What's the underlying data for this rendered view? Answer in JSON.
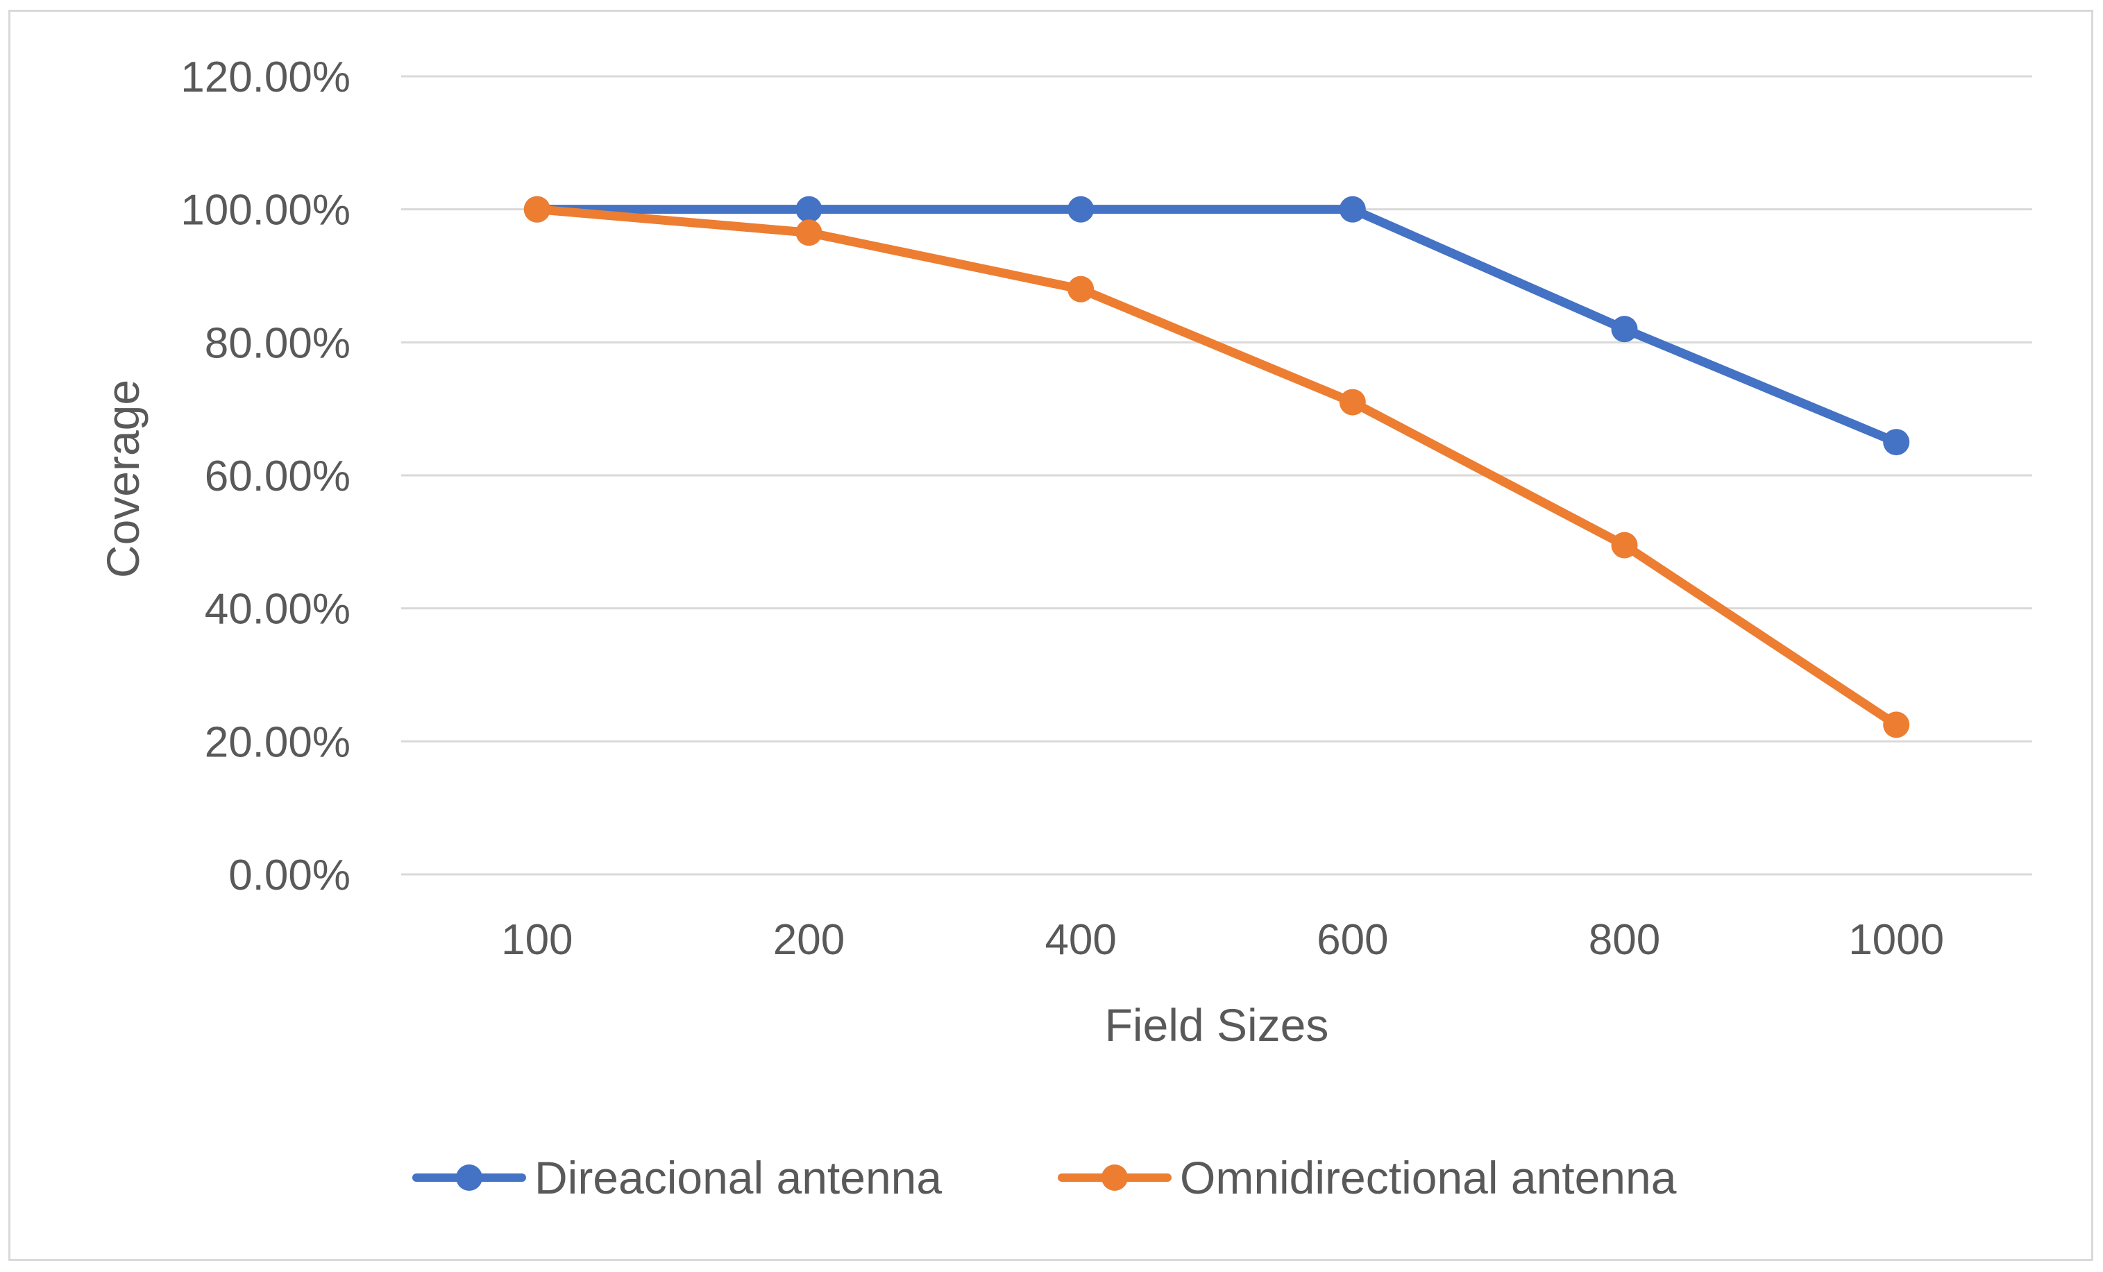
{
  "chart_data": {
    "type": "line",
    "title": "",
    "xlabel": "Field Sizes",
    "ylabel": "Coverage",
    "categories": [
      "100",
      "200",
      "400",
      "600",
      "800",
      "1000"
    ],
    "ylim": [
      0,
      120
    ],
    "yticks": [
      0,
      20,
      40,
      60,
      80,
      100,
      120
    ],
    "ytick_labels": [
      "0.00%",
      "20.00%",
      "40.00%",
      "60.00%",
      "80.00%",
      "100.00%",
      "120.00%"
    ],
    "grid": true,
    "legend_position": "bottom",
    "series": [
      {
        "name": "Direacional antenna",
        "color": "#4472c4",
        "values": [
          100,
          100,
          100,
          100,
          82,
          65
        ]
      },
      {
        "name": "Omnidirectional antenna",
        "color": "#ed7d31",
        "values": [
          100,
          96.5,
          88,
          71,
          49.5,
          22.5
        ]
      }
    ]
  }
}
